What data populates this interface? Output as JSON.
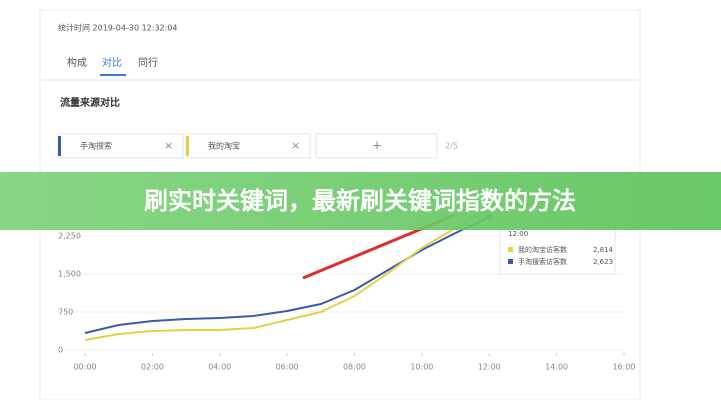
{
  "header": {
    "timestamp": "统计时间 2019-04-30 12:32:04"
  },
  "tabs": [
    "构成",
    "对比",
    "同行"
  ],
  "section_title": "流量来源对比",
  "filters": [
    "手淘搜索",
    "我的淘宝"
  ],
  "filter_count": "2/5",
  "banner": "刷实时关键词，最新刷关键词指数的方法",
  "chart_data": {
    "type": "line",
    "x": [
      0,
      1,
      2,
      3,
      4,
      5,
      6,
      7,
      8,
      9,
      10,
      11,
      12
    ],
    "xlim": [
      0,
      16
    ],
    "xticks": [
      {
        "value": 0,
        "label": "00:00"
      },
      {
        "value": 2,
        "label": "02:00"
      },
      {
        "value": 4,
        "label": "04:00"
      },
      {
        "value": 6,
        "label": "06:00"
      },
      {
        "value": 8,
        "label": "08:00"
      },
      {
        "value": 10,
        "label": "10:00"
      },
      {
        "value": 12,
        "label": "12:00"
      },
      {
        "value": 14,
        "label": "14:00"
      },
      {
        "value": 16,
        "label": "16:00"
      }
    ],
    "ylim": [
      0,
      3750
    ],
    "yticks": [
      0,
      750,
      {
        "value": 1500,
        "label": "1,500"
      },
      {
        "value": 2250,
        "label": "2,250"
      }
    ],
    "series": [
      {
        "name": "手淘搜索访客数",
        "color": "#3a5ca8",
        "values": [
          335,
          493,
          572,
          612,
          632,
          671,
          770,
          908,
          1184,
          1579,
          1974,
          2309,
          2623
        ]
      },
      {
        "name": "我的淘宝访客数",
        "color": "#e8cf4a",
        "values": [
          197,
          316,
          375,
          395,
          395,
          434,
          592,
          750,
          1066,
          1520,
          2013,
          2408,
          2814
        ]
      }
    ],
    "tooltip": {
      "time": "12:00",
      "values": [
        "2,814",
        "2,623"
      ]
    }
  }
}
